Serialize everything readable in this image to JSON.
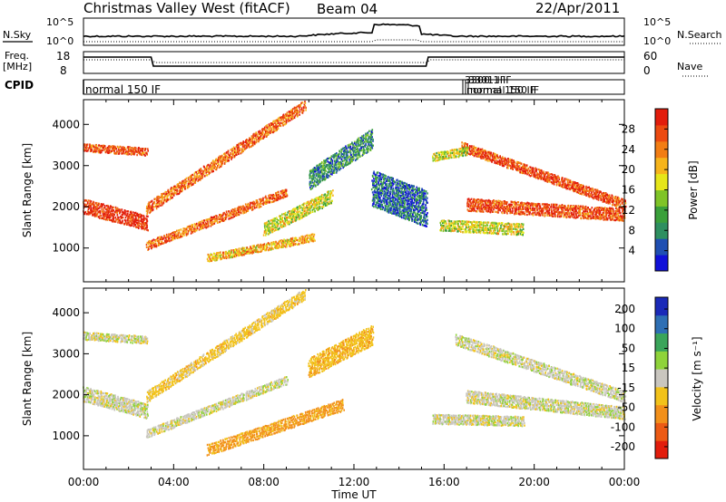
{
  "header": {
    "title": "Christmas Valley West (fitACF)",
    "beam": "Beam 04",
    "date": "22/Apr/2011"
  },
  "nsky_panel": {
    "left_label": "N.Sky",
    "right_label": "N.Search",
    "left_ticks": [
      "10^5",
      "10^0"
    ],
    "right_ticks": [
      "10^5",
      "10^0"
    ]
  },
  "freq_panel": {
    "left_label_1": "Freq.",
    "left_label_2": "[MHz]",
    "right_label": "Nave",
    "left_ticks": [
      "18",
      "8"
    ],
    "right_ticks": [
      "60",
      "0"
    ]
  },
  "cpid_panel": {
    "label": "CPID",
    "mode_label": "normal 150 IF",
    "overlap_labels": [
      "3300 1 IF",
      "3301 IF",
      "normal 150 IF",
      "normal 150 IF"
    ]
  },
  "chart_data": [
    {
      "name": "power",
      "type": "heatmap",
      "ylabel": "Slant Range [km]",
      "ylim": [
        180,
        4600
      ],
      "y_ticks": [
        "1000",
        "2000",
        "3000",
        "4000"
      ],
      "x_ticks": [
        "00:00",
        "04:00",
        "08:00",
        "12:00",
        "16:00",
        "20:00",
        "00:00"
      ],
      "xlim_hours": [
        0,
        24
      ],
      "colorbar": {
        "label": "Power [dB]",
        "ticks": [
          "4",
          "8",
          "12",
          "16",
          "20",
          "24",
          "28"
        ],
        "colors": [
          "#1010d8",
          "#1f4fb2",
          "#2e8f60",
          "#3aa03a",
          "#7fc427",
          "#e6e619",
          "#f6b41b",
          "#f27d13",
          "#ec4a10",
          "#e21d0c"
        ],
        "range": [
          0,
          30
        ]
      },
      "bands": [
        {
          "h0": 0.0,
          "h1": 2.8,
          "r0": 3480,
          "r1": 3380,
          "w": 200,
          "p": 26
        },
        {
          "h0": 0.0,
          "h1": 2.8,
          "r0": 2060,
          "r1": 1650,
          "w": 380,
          "p": 28
        },
        {
          "h0": 2.8,
          "h1": 9.8,
          "r0": 2000,
          "r1": 4500,
          "w": 280,
          "p": 24
        },
        {
          "h0": 2.8,
          "h1": 9.0,
          "r0": 1100,
          "r1": 2400,
          "w": 220,
          "p": 24
        },
        {
          "h0": 5.5,
          "h1": 10.2,
          "r0": 800,
          "r1": 1300,
          "w": 200,
          "p": 20
        },
        {
          "h0": 8.0,
          "h1": 11.0,
          "r0": 1500,
          "r1": 2300,
          "w": 350,
          "p": 16
        },
        {
          "h0": 10.0,
          "h1": 12.8,
          "r0": 2700,
          "r1": 3700,
          "w": 500,
          "p": 8
        },
        {
          "h0": 12.8,
          "h1": 15.2,
          "r0": 2500,
          "r1": 2000,
          "w": 900,
          "p": 6
        },
        {
          "h0": 15.8,
          "h1": 19.5,
          "r0": 1600,
          "r1": 1500,
          "w": 300,
          "p": 16
        },
        {
          "h0": 16.8,
          "h1": 24.0,
          "r0": 3500,
          "r1": 2100,
          "w": 250,
          "p": 26
        },
        {
          "h0": 17.0,
          "h1": 24.0,
          "r0": 2100,
          "r1": 1850,
          "w": 320,
          "p": 26
        },
        {
          "h0": 15.5,
          "h1": 17.0,
          "r0": 3250,
          "r1": 3400,
          "w": 220,
          "p": 16
        }
      ]
    },
    {
      "name": "velocity",
      "type": "heatmap",
      "ylabel": "Slant Range [km]",
      "xlabel": "Time UT",
      "ylim": [
        180,
        4600
      ],
      "y_ticks": [
        "1000",
        "2000",
        "3000",
        "4000"
      ],
      "x_ticks": [
        "00:00",
        "04:00",
        "08:00",
        "12:00",
        "16:00",
        "20:00",
        "00:00"
      ],
      "xlim_hours": [
        0,
        24
      ],
      "colorbar": {
        "label": "Velocity [m s⁻¹]",
        "ticks": [
          "200",
          "100",
          "50",
          "15",
          "-15",
          "-50",
          "-100",
          "-200"
        ],
        "colors": [
          "#1a2ab8",
          "#2e6fb4",
          "#3aa55a",
          "#8fd33a",
          "#c9c6bf",
          "#f2c21a",
          "#f2901a",
          "#ec5a14",
          "#e21d0c"
        ]
      },
      "bands": [
        {
          "h0": 0.0,
          "h1": 2.8,
          "r0": 3480,
          "r1": 3380,
          "w": 200,
          "v": 0
        },
        {
          "h0": 0.0,
          "h1": 2.8,
          "r0": 2060,
          "r1": 1650,
          "w": 380,
          "v": 0
        },
        {
          "h0": 2.8,
          "h1": 9.8,
          "r0": 2000,
          "r1": 4500,
          "w": 280,
          "v": -30
        },
        {
          "h0": 2.8,
          "h1": 9.0,
          "r0": 1100,
          "r1": 2400,
          "w": 220,
          "v": 0
        },
        {
          "h0": 5.5,
          "h1": 11.5,
          "r0": 700,
          "r1": 1800,
          "w": 300,
          "v": -60
        },
        {
          "h0": 10.0,
          "h1": 12.8,
          "r0": 2700,
          "r1": 3500,
          "w": 500,
          "v": -40
        },
        {
          "h0": 16.5,
          "h1": 24.0,
          "r0": 3400,
          "r1": 2000,
          "w": 300,
          "v": 0
        },
        {
          "h0": 17.0,
          "h1": 24.0,
          "r0": 2000,
          "r1": 1600,
          "w": 320,
          "v": 0
        },
        {
          "h0": 15.5,
          "h1": 19.5,
          "r0": 1450,
          "r1": 1400,
          "w": 250,
          "v": 0
        }
      ]
    }
  ]
}
